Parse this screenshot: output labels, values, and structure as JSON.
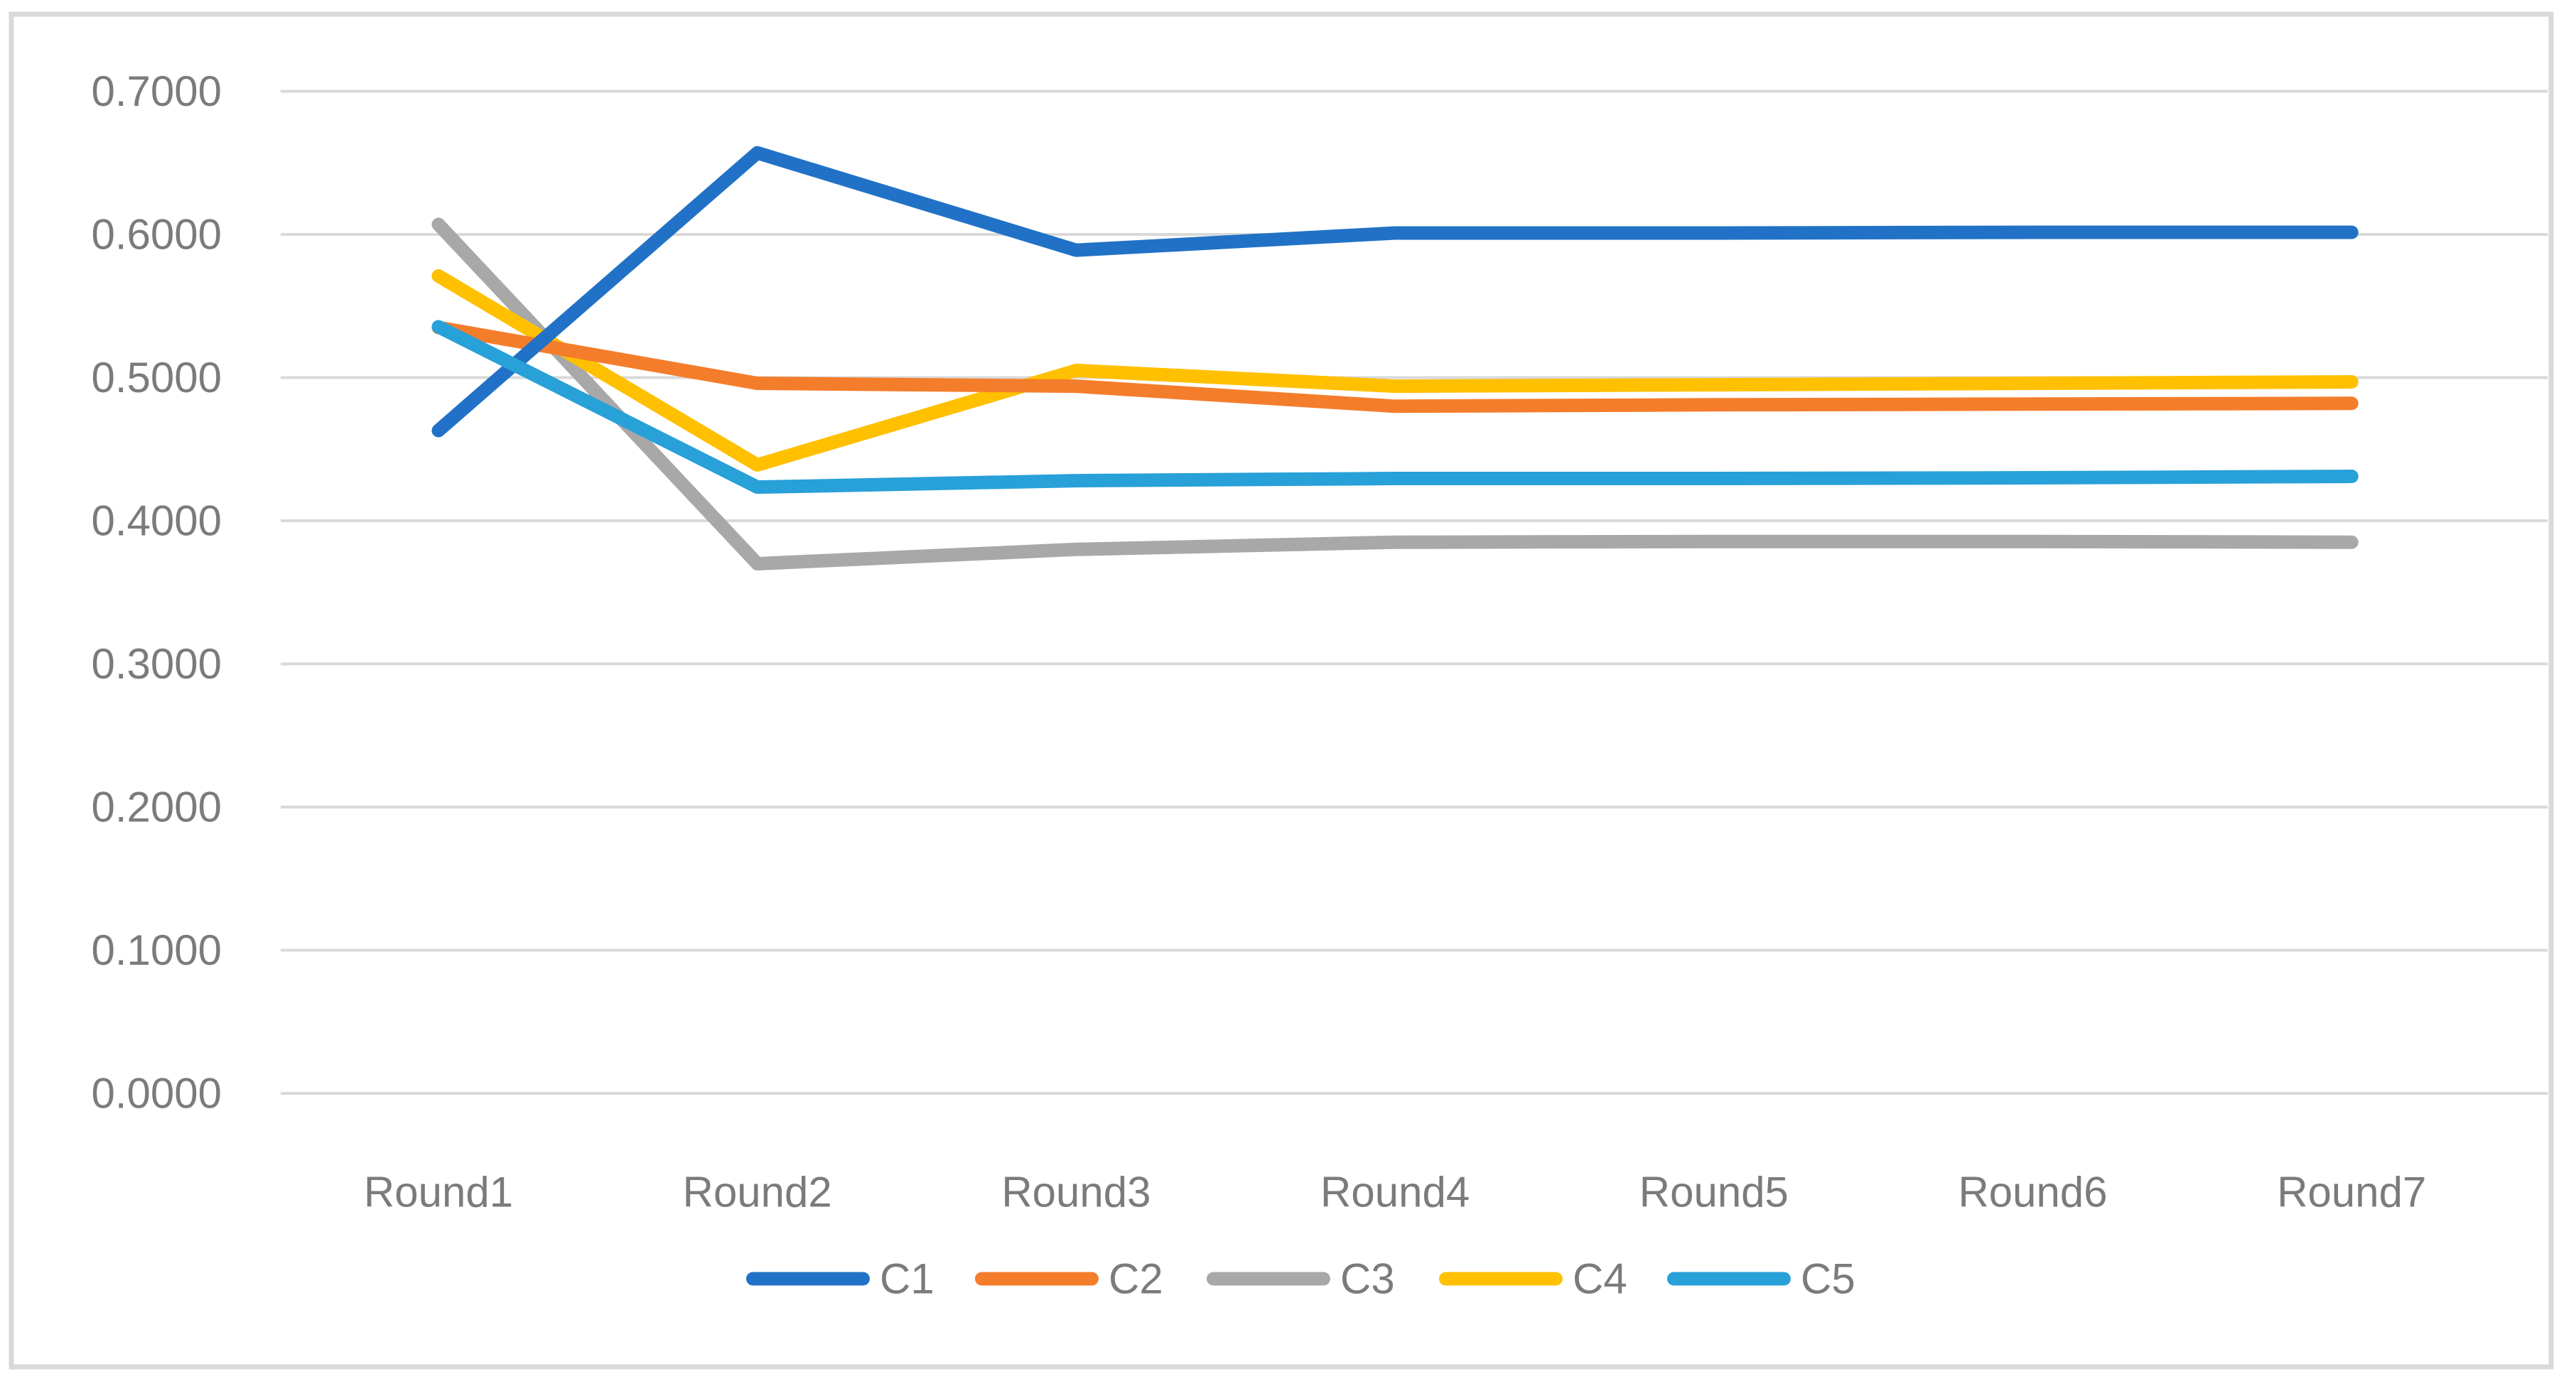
{
  "chart_data": {
    "type": "line",
    "title": "",
    "xlabel": "",
    "ylabel": "",
    "categories": [
      "Round1",
      "Round2",
      "Round3",
      "Round4",
      "Round5",
      "Round6",
      "Round7"
    ],
    "series": [
      {
        "name": "C1",
        "color": "#2172C6",
        "values": [
          0.463,
          0.657,
          0.589,
          0.601,
          0.601,
          0.6015,
          0.6015
        ]
      },
      {
        "name": "C2",
        "color": "#F47D2B",
        "values": [
          0.535,
          0.496,
          0.494,
          0.48,
          0.481,
          0.4815,
          0.482
        ]
      },
      {
        "name": "C3",
        "color": "#A8A8A8",
        "values": [
          0.607,
          0.37,
          0.38,
          0.385,
          0.3855,
          0.3855,
          0.385
        ]
      },
      {
        "name": "C4",
        "color": "#FFC000",
        "values": [
          0.571,
          0.439,
          0.505,
          0.494,
          0.495,
          0.496,
          0.497
        ]
      },
      {
        "name": "C5",
        "color": "#28A0D8",
        "values": [
          0.5355,
          0.4235,
          0.428,
          0.4295,
          0.4295,
          0.43,
          0.431
        ]
      }
    ],
    "draw_order": [
      "C3",
      "C4",
      "C2",
      "C1",
      "C5"
    ],
    "y_axis": {
      "min": 0.0,
      "max": 0.7,
      "step": 0.1,
      "tick_labels": [
        "0.0000",
        "0.1000",
        "0.2000",
        "0.3000",
        "0.4000",
        "0.5000",
        "0.6000",
        "0.7000"
      ]
    },
    "grid": true,
    "legend_position": "bottom",
    "legend_labels": [
      "C1",
      "C2",
      "C3",
      "C4",
      "C5"
    ],
    "colors": {
      "gridline": "#D9D9D9",
      "chart_border": "#D9D9D9",
      "axis_text": "#7B7B7B",
      "background": "#FFFFFF"
    }
  }
}
